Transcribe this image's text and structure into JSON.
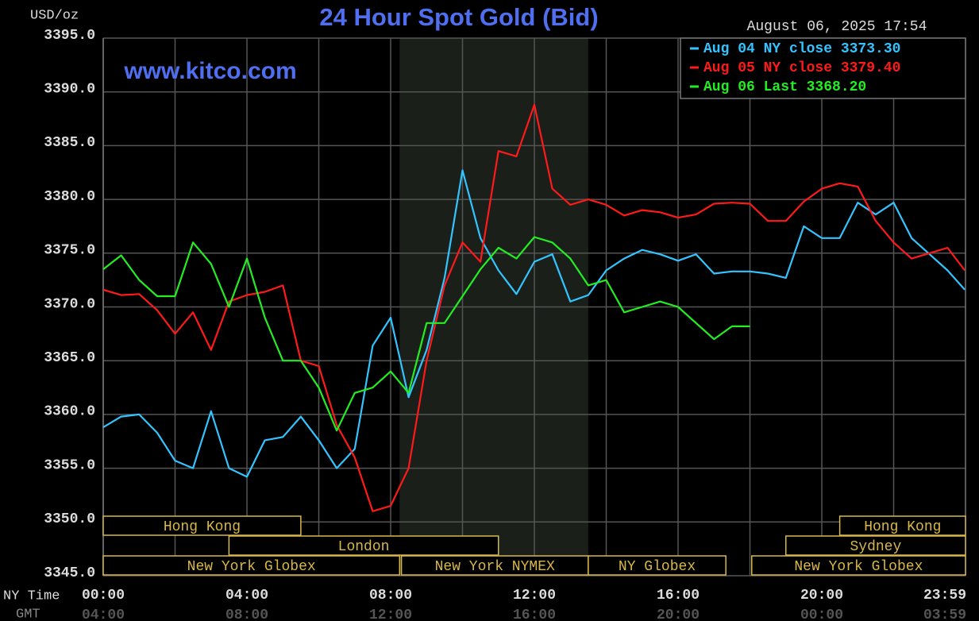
{
  "chart_data": {
    "type": "line",
    "title": "24 Hour Spot Gold (Bid)",
    "subtitle": "www.kitco.com",
    "timestamp": "August 06, 2025 17:54",
    "y_label": "USD/oz",
    "x_label": "NY Time",
    "x2_label": "GMT",
    "xlim": [
      0,
      24
    ],
    "ylim": [
      3345,
      3395
    ],
    "xticks": [
      {
        "value": 0,
        "label": "00:00"
      },
      {
        "value": 4,
        "label": "04:00"
      },
      {
        "value": 8,
        "label": "08:00"
      },
      {
        "value": 12,
        "label": "12:00"
      },
      {
        "value": 16,
        "label": "16:00"
      },
      {
        "value": 20,
        "label": "20:00"
      },
      {
        "value": 23.983,
        "label": "23:59"
      }
    ],
    "x2ticks": [
      {
        "value": 0,
        "label": "04:00"
      },
      {
        "value": 4,
        "label": "08:00"
      },
      {
        "value": 8,
        "label": "12:00"
      },
      {
        "value": 12,
        "label": "16:00"
      },
      {
        "value": 16,
        "label": "20:00"
      },
      {
        "value": 20,
        "label": "00:00"
      },
      {
        "value": 23.983,
        "label": "03:59"
      }
    ],
    "xgrid": [
      0,
      2,
      4,
      6,
      8,
      10,
      12,
      14,
      16,
      18,
      20,
      22
    ],
    "yticks": [
      {
        "value": 3345,
        "label": "3345.0"
      },
      {
        "value": 3350,
        "label": "3350.0"
      },
      {
        "value": 3355,
        "label": "3355.0"
      },
      {
        "value": 3360,
        "label": "3360.0"
      },
      {
        "value": 3365,
        "label": "3365.0"
      },
      {
        "value": 3370,
        "label": "3370.0"
      },
      {
        "value": 3375,
        "label": "3375.0"
      },
      {
        "value": 3380,
        "label": "3380.0"
      },
      {
        "value": 3385,
        "label": "3385.0"
      },
      {
        "value": 3390,
        "label": "3390.0"
      },
      {
        "value": 3395,
        "label": "3395.0"
      }
    ],
    "grid": true,
    "legend": "top-right",
    "highlight": {
      "start": 8.25,
      "end": 13.5,
      "color": "#1a1f1a"
    },
    "x": [
      0,
      0.5,
      1,
      1.5,
      2,
      2.5,
      3,
      3.5,
      4,
      4.5,
      5,
      5.5,
      6,
      6.5,
      7,
      7.5,
      8,
      8.5,
      9,
      9.5,
      10,
      10.5,
      11,
      11.5,
      12,
      12.5,
      13,
      13.5,
      14,
      14.5,
      15,
      15.5,
      16,
      16.5,
      17,
      17.5,
      18,
      18.5,
      19,
      19.5,
      20,
      20.5,
      21,
      21.5,
      22,
      22.5,
      23,
      23.5,
      23.98
    ],
    "series": [
      {
        "name": "Aug 04 NY close 3373.30",
        "color": "#33c4ff",
        "values": [
          3358.8,
          3359.8,
          3360.0,
          3358.3,
          3355.7,
          3355.0,
          3360.3,
          3355.0,
          3354.2,
          3357.6,
          3357.9,
          3359.8,
          3357.6,
          3355.0,
          3356.8,
          3366.4,
          3369.0,
          3361.6,
          3366.0,
          3372.7,
          3382.7,
          3376.4,
          3373.4,
          3371.2,
          3374.2,
          3374.9,
          3370.5,
          3371.1,
          3373.4,
          3374.5,
          3375.3,
          3374.9,
          3374.3,
          3374.9,
          3373.1,
          3373.3,
          3373.3,
          3373.1,
          3372.7,
          3377.5,
          3376.4,
          3376.4,
          3379.7,
          3378.6,
          3379.7,
          3376.4,
          3374.9,
          3373.4,
          3371.6
        ]
      },
      {
        "name": "Aug 05 NY close 3379.40",
        "color": "#ff1a1a",
        "values": [
          3371.6,
          3371.1,
          3371.2,
          3369.7,
          3367.5,
          3369.5,
          3366.0,
          3370.5,
          3371.1,
          3371.4,
          3372.0,
          3365.0,
          3364.5,
          3359.0,
          3356.0,
          3351.0,
          3351.5,
          3355.0,
          3365.0,
          3372.0,
          3376.0,
          3374.2,
          3384.5,
          3384.0,
          3388.8,
          3381.0,
          3379.5,
          3380.0,
          3379.5,
          3378.5,
          3379.0,
          3378.8,
          3378.3,
          3378.6,
          3379.6,
          3379.7,
          3379.6,
          3378.0,
          3378.0,
          3379.8,
          3381.0,
          3381.5,
          3381.2,
          3378.0,
          3376.0,
          3374.5,
          3375.0,
          3375.5,
          3373.4
        ]
      },
      {
        "name": "Aug 06 Last 3368.20",
        "color": "#22ee22",
        "values": [
          3373.5,
          3374.8,
          3372.5,
          3371.0,
          3371.0,
          3376.0,
          3374.0,
          3370.0,
          3374.5,
          3369.0,
          3365.0,
          3365.0,
          3362.5,
          3358.5,
          3362.0,
          3362.5,
          3364.0,
          3362.0,
          3368.5,
          3368.5,
          3371.0,
          3373.5,
          3375.5,
          3374.5,
          3376.5,
          3376.0,
          3374.5,
          3372.0,
          3372.5,
          3369.5,
          3370.0,
          3370.5,
          3370.0,
          3368.5,
          3367.0,
          3368.2,
          3368.2,
          null,
          null,
          null,
          null,
          null,
          null,
          null,
          null,
          null,
          null,
          null,
          null
        ]
      }
    ],
    "sessions": [
      {
        "label": "Hong Kong",
        "row": 0,
        "start": 0,
        "end": 5.5
      },
      {
        "label": "Hong Kong",
        "row": 0,
        "start": 20.5,
        "end": 24
      },
      {
        "label": "London",
        "row": 1,
        "start": 3.5,
        "end": 11
      },
      {
        "label": "Sydney",
        "row": 1,
        "start": 19,
        "end": 24
      },
      {
        "label": "New York Globex",
        "row": 2,
        "start": 0,
        "end": 8.25
      },
      {
        "label": "New York NYMEX",
        "row": 2,
        "start": 8.3,
        "end": 13.5
      },
      {
        "label": "NY Globex",
        "row": 2,
        "start": 13.5,
        "end": 17.33
      },
      {
        "label": "New York Globex",
        "row": 2,
        "start": 18.05,
        "end": 24
      }
    ],
    "session_color": "#d8b84a"
  }
}
